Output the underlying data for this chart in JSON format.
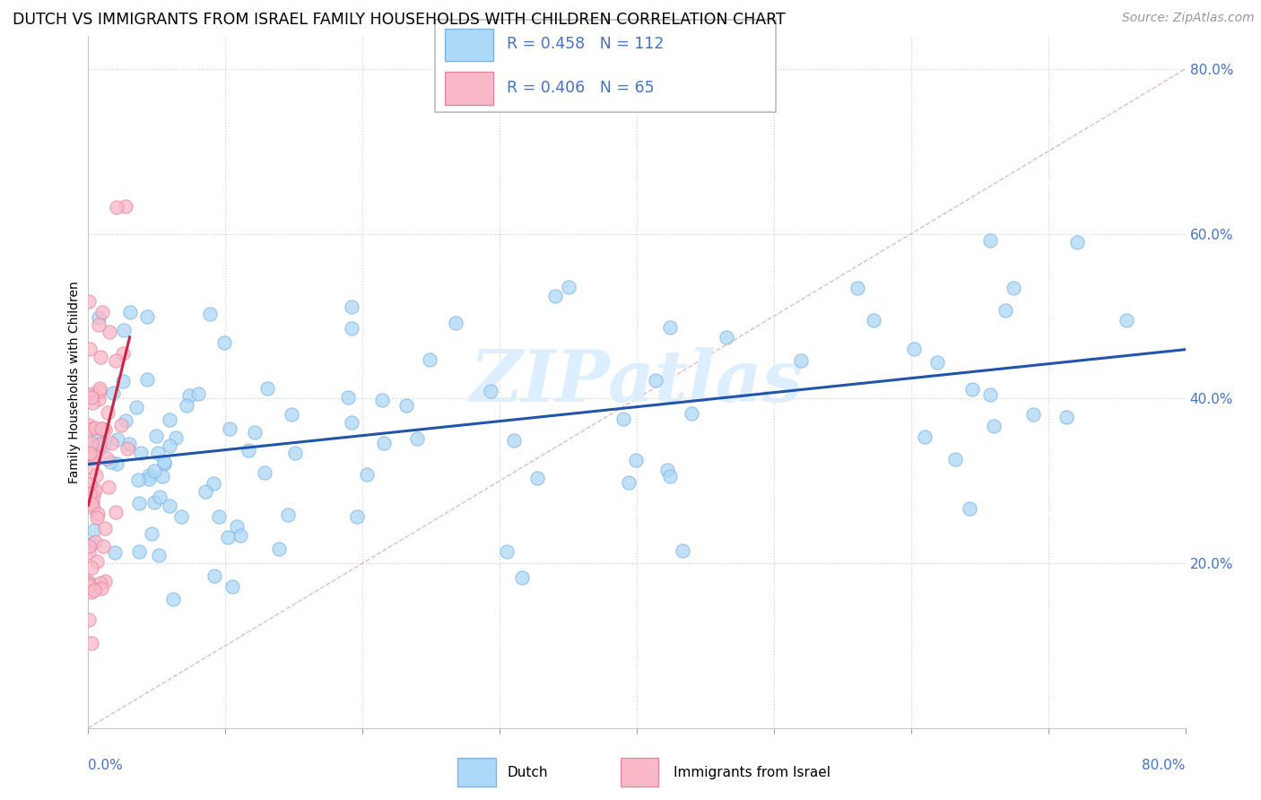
{
  "title": "DUTCH VS IMMIGRANTS FROM ISRAEL FAMILY HOUSEHOLDS WITH CHILDREN CORRELATION CHART",
  "source": "Source: ZipAtlas.com",
  "ylabel": "Family Households with Children",
  "blue_color": "#ADD8F7",
  "blue_edge_color": "#7EB4E2",
  "pink_color": "#F9B8C8",
  "pink_edge_color": "#E888A0",
  "blue_line_color": "#2255AA",
  "pink_line_color": "#CC2244",
  "diagonal_color": "#D0A0B0",
  "watermark_color": "#DDEEFF",
  "legend_blue_text": "R = 0.458   N = 112",
  "legend_pink_text": "R = 0.406   N = 65",
  "legend_label_blue": "Dutch",
  "legend_label_pink": "Immigrants from Israel",
  "tick_color": "#4472C4",
  "title_fontsize": 12.5,
  "source_fontsize": 10,
  "axis_label_fontsize": 10,
  "blue_n": 112,
  "pink_n": 65,
  "blue_r": 0.458,
  "pink_r": 0.406,
  "xlim": [
    0.0,
    0.8
  ],
  "ylim": [
    0.0,
    0.84
  ]
}
